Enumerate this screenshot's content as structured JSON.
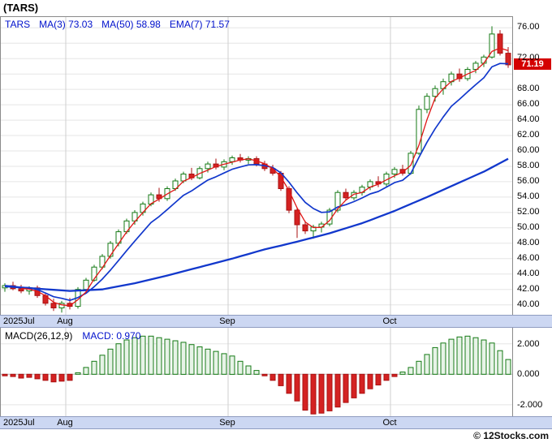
{
  "title": "(TARS)",
  "footer": "© 12Stocks.com",
  "legend": {
    "symbol": "TARS",
    "items": [
      {
        "label": "MA(3)",
        "value": "73.03"
      },
      {
        "label": "MA(50)",
        "value": "58.98"
      },
      {
        "label": "EMA(7)",
        "value": "71.57"
      }
    ]
  },
  "macd_legend": {
    "label": "MACD(26,12,9)",
    "value": "MACD: 0.970"
  },
  "colors": {
    "up": "#157a15",
    "up_fill": "#ffffff",
    "down": "#d42222",
    "down_border": "#aa1111",
    "ma3": "#e01515",
    "ema7": "#1238cc",
    "ma50": "#1238cc",
    "badge_bg": "#d40000",
    "strip_bg": "#ccd7f2",
    "legend_text": "#0011cc",
    "macd_up_fill": "#e7f3e7",
    "grid": "#e5e5e5",
    "month_grid": "#cfcfcf"
  },
  "chart_data": [
    {
      "type": "candlestick",
      "title": "TARS daily price with MA(3), MA(50), EMA(7)",
      "last_price": 71.19,
      "last_price_label": "71.19",
      "x_labels": [
        {
          "label": "2025Jul",
          "index": 0
        },
        {
          "label": "Aug",
          "index": 8
        },
        {
          "label": "Sep",
          "index": 28
        },
        {
          "label": "Oct",
          "index": 48
        }
      ],
      "y_axis": {
        "min": 40,
        "max": 76,
        "step": 2,
        "range_top": 77.4,
        "range_bottom": 38.7,
        "visible_ticks": [
          "76.00",
          "72.00",
          "68.00",
          "66.00",
          "64.00",
          "62.00",
          "60.00",
          "58.00",
          "56.00",
          "54.00",
          "52.00",
          "50.00",
          "48.00",
          "46.00",
          "44.00",
          "42.00",
          "40.00"
        ]
      },
      "candles": [
        [
          42.2,
          42.8,
          41.7,
          42.5
        ],
        [
          42.5,
          43.0,
          41.9,
          42.1
        ],
        [
          42.1,
          42.6,
          41.5,
          41.8
        ],
        [
          41.8,
          42.4,
          41.3,
          42.2
        ],
        [
          42.2,
          42.5,
          40.9,
          41.2
        ],
        [
          41.2,
          41.6,
          39.9,
          40.2
        ],
        [
          40.2,
          40.8,
          39.2,
          39.6
        ],
        [
          39.6,
          40.5,
          39.0,
          40.2
        ],
        [
          40.2,
          40.9,
          39.4,
          39.8
        ],
        [
          39.8,
          42.3,
          39.5,
          42.0
        ],
        [
          42.0,
          43.5,
          41.6,
          43.2
        ],
        [
          43.2,
          45.2,
          43.0,
          44.9
        ],
        [
          44.9,
          46.6,
          44.6,
          46.3
        ],
        [
          46.3,
          48.3,
          46.0,
          48.0
        ],
        [
          48.0,
          49.8,
          47.6,
          49.5
        ],
        [
          49.5,
          51.2,
          49.2,
          50.9
        ],
        [
          50.9,
          52.3,
          50.4,
          52.0
        ],
        [
          52.0,
          53.4,
          51.6,
          53.1
        ],
        [
          53.1,
          54.6,
          52.8,
          54.3
        ],
        [
          54.3,
          55.2,
          53.4,
          53.8
        ],
        [
          53.8,
          55.4,
          53.5,
          55.1
        ],
        [
          55.1,
          56.4,
          54.8,
          56.1
        ],
        [
          56.1,
          57.3,
          55.8,
          57.0
        ],
        [
          57.0,
          57.8,
          56.2,
          56.5
        ],
        [
          56.5,
          58.0,
          56.3,
          57.7
        ],
        [
          57.7,
          58.6,
          57.2,
          58.3
        ],
        [
          58.3,
          59.0,
          57.6,
          57.9
        ],
        [
          57.9,
          58.9,
          57.5,
          58.6
        ],
        [
          58.6,
          59.4,
          58.2,
          59.1
        ],
        [
          59.1,
          59.6,
          58.5,
          58.8
        ],
        [
          58.8,
          59.3,
          58.3,
          59.0
        ],
        [
          59.0,
          59.3,
          58.0,
          58.3
        ],
        [
          58.3,
          58.7,
          57.4,
          57.7
        ],
        [
          57.7,
          58.2,
          56.8,
          57.1
        ],
        [
          57.1,
          57.4,
          54.8,
          55.1
        ],
        [
          55.1,
          55.4,
          51.9,
          52.3
        ],
        [
          52.3,
          52.6,
          48.7,
          50.4
        ],
        [
          50.4,
          50.9,
          49.2,
          49.6
        ],
        [
          49.6,
          50.4,
          48.6,
          50.1
        ],
        [
          50.1,
          50.8,
          49.4,
          50.5
        ],
        [
          50.5,
          52.6,
          50.2,
          52.3
        ],
        [
          52.3,
          54.9,
          52.0,
          54.6
        ],
        [
          54.6,
          55.1,
          53.6,
          53.9
        ],
        [
          53.9,
          54.9,
          53.6,
          54.6
        ],
        [
          54.6,
          55.6,
          54.2,
          55.3
        ],
        [
          55.3,
          56.3,
          54.9,
          56.0
        ],
        [
          56.0,
          56.7,
          55.3,
          55.7
        ],
        [
          55.7,
          57.3,
          55.4,
          57.0
        ],
        [
          57.0,
          57.9,
          56.5,
          57.6
        ],
        [
          57.6,
          58.2,
          56.8,
          57.1
        ],
        [
          57.1,
          60.0,
          56.9,
          59.7
        ],
        [
          59.7,
          65.9,
          59.5,
          65.4
        ],
        [
          65.4,
          67.5,
          64.9,
          67.1
        ],
        [
          67.1,
          68.5,
          66.4,
          68.1
        ],
        [
          68.1,
          69.4,
          67.3,
          69.0
        ],
        [
          69.0,
          70.3,
          68.5,
          70.0
        ],
        [
          70.0,
          70.7,
          69.0,
          69.4
        ],
        [
          69.4,
          70.9,
          69.1,
          70.6
        ],
        [
          70.6,
          71.7,
          70.1,
          71.4
        ],
        [
          71.4,
          72.5,
          70.9,
          72.2
        ],
        [
          72.2,
          76.2,
          72.0,
          75.2
        ],
        [
          75.2,
          75.7,
          72.4,
          72.7
        ],
        [
          72.7,
          73.5,
          70.8,
          71.19
        ]
      ],
      "overlays": {
        "ma3": {
          "period": 3,
          "value": 73.03
        },
        "ema7": {
          "period": 7,
          "value": 71.57
        },
        "ma50": {
          "period": 50,
          "value": 58.98,
          "points": [
            [
              0,
              42.4
            ],
            [
              4,
              42.1
            ],
            [
              8,
              41.8
            ],
            [
              12,
              42.0
            ],
            [
              16,
              42.8
            ],
            [
              20,
              43.8
            ],
            [
              24,
              44.9
            ],
            [
              28,
              46.0
            ],
            [
              32,
              47.2
            ],
            [
              36,
              48.2
            ],
            [
              40,
              49.3
            ],
            [
              44,
              50.6
            ],
            [
              48,
              52.2
            ],
            [
              52,
              54.0
            ],
            [
              56,
              55.9
            ],
            [
              59,
              57.3
            ],
            [
              62,
              58.98
            ]
          ]
        }
      }
    },
    {
      "type": "bar",
      "title": "MACD(26,12,9)",
      "last_value": 0.97,
      "y_axis": {
        "range_top": 3.05,
        "range_bottom": -2.75,
        "ticks": [
          "2.000",
          "0.000",
          "-2.000"
        ],
        "tick_values": [
          2,
          0,
          -2
        ]
      },
      "values": [
        -0.1,
        -0.15,
        -0.25,
        -0.2,
        -0.3,
        -0.4,
        -0.5,
        -0.45,
        -0.4,
        0.1,
        0.45,
        0.85,
        1.25,
        1.65,
        2.0,
        2.25,
        2.4,
        2.5,
        2.5,
        2.4,
        2.3,
        2.2,
        2.1,
        1.95,
        1.8,
        1.65,
        1.5,
        1.35,
        1.2,
        0.85,
        0.55,
        0.25,
        -0.1,
        -0.4,
        -0.75,
        -1.25,
        -1.75,
        -2.35,
        -2.6,
        -2.55,
        -2.4,
        -2.15,
        -1.85,
        -1.55,
        -1.25,
        -0.95,
        -0.7,
        -0.4,
        -0.15,
        0.15,
        0.45,
        0.85,
        1.3,
        1.75,
        2.05,
        2.3,
        2.45,
        2.5,
        2.4,
        2.25,
        2.05,
        1.55,
        0.97
      ]
    }
  ]
}
